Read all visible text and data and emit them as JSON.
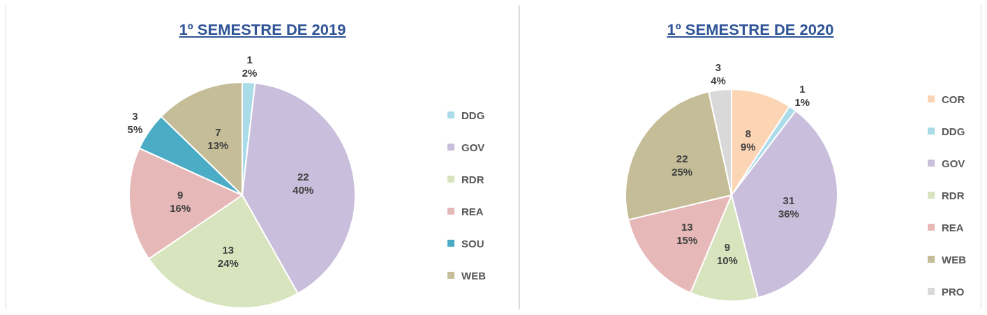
{
  "chart_data": [
    {
      "type": "pie",
      "title": "1º SEMESTRE DE 2019",
      "categories": [
        "DDG",
        "GOV",
        "RDR",
        "REA",
        "SOU",
        "WEB"
      ],
      "values": [
        1,
        22,
        13,
        9,
        3,
        7
      ],
      "colors": [
        "#a9dbe8",
        "#c9bfdc",
        "#d7e4bd",
        "#e6b9b8",
        "#4bacc6",
        "#c4bd97"
      ],
      "value_labels": [
        "1\n2%",
        "22\n40%",
        "13\n24%",
        "9\n16%",
        "3\n5%",
        "7\n13%"
      ],
      "legend": "right"
    },
    {
      "type": "pie",
      "title": "1º SEMESTRE DE 2020",
      "categories": [
        "COR",
        "DDG",
        "GOV",
        "RDR",
        "REA",
        "WEB",
        "PRO"
      ],
      "values": [
        8,
        1,
        31,
        9,
        13,
        22,
        3
      ],
      "colors": [
        "#fcd5b5",
        "#a9dbe8",
        "#c9bfdc",
        "#d7e4bd",
        "#e6b9b8",
        "#c4bd97",
        "#d9d9d9"
      ],
      "value_labels": [
        "8\n9%",
        "1\n1%",
        "31\n36%",
        "9\n10%",
        "13\n15%",
        "22\n25%",
        "3\n4%"
      ],
      "legend": "right"
    }
  ]
}
